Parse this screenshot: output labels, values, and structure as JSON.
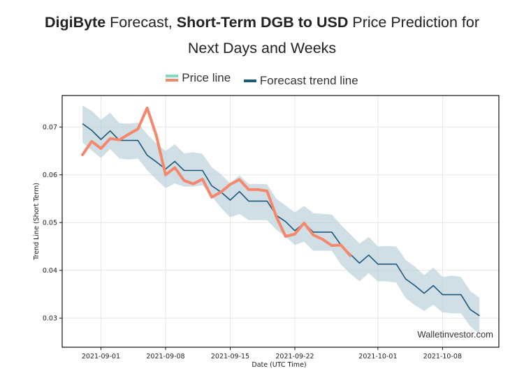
{
  "title": {
    "part1_bold": "DigiByte",
    "part2": " Forecast, ",
    "part3_bold": "Short-Term DGB to USD",
    "part4": " Price Prediction for",
    "line2": "Next Days and Weeks"
  },
  "legend": {
    "items": [
      {
        "label": "Price line",
        "colors": [
          "#7fdcc0",
          "#f4876c"
        ]
      },
      {
        "label": "Forecast trend line",
        "color": "#1d5878"
      }
    ]
  },
  "watermark": "Walletinvestor.com",
  "chart_data": {
    "type": "line",
    "title": "DigiByte Forecast, Short-Term DGB to USD Price Prediction for Next Days and Weeks",
    "xlabel": "Date (UTC Time)",
    "ylabel": "Trend Line (Short Term)",
    "x_ticks": [
      "2021-09-01",
      "2021-09-08",
      "2021-09-15",
      "2021-09-22",
      "2021-10-01",
      "2021-10-08"
    ],
    "y_ticks": [
      0.03,
      0.04,
      0.05,
      0.06,
      0.07
    ],
    "y_tick_labels": [
      "0.03",
      "0.04",
      "0.05",
      "0.06",
      "0.07"
    ],
    "xlim": [
      "2021-08-27.8",
      "2021-10-14.1"
    ],
    "ylim": [
      0.0239,
      0.0766
    ],
    "grid": true,
    "legend_position": "top-center",
    "colors": {
      "price": "#f4876c",
      "trend": "#1d5878",
      "band": "#b7cdd9"
    },
    "x_start": "2021-08-30",
    "series": [
      {
        "name": "Forecast trend line",
        "start": "2021-08-30",
        "values": [
          0.0707,
          0.0693,
          0.0674,
          0.0692,
          0.0672,
          0.0672,
          0.0672,
          0.0641,
          0.0627,
          0.0612,
          0.0628,
          0.0609,
          0.0609,
          0.0609,
          0.0577,
          0.0564,
          0.0547,
          0.0565,
          0.0545,
          0.0545,
          0.0545,
          0.0515,
          0.0502,
          0.0483,
          0.0499,
          0.048,
          0.048,
          0.048,
          0.0453,
          0.0434,
          0.0415,
          0.0432,
          0.0413,
          0.0413,
          0.0413,
          0.0382,
          0.0368,
          0.0352,
          0.0368,
          0.0349,
          0.0349,
          0.0349,
          0.0318,
          0.0305
        ]
      },
      {
        "name": "Price line",
        "start": "2021-08-30",
        "values": [
          0.0642,
          0.067,
          0.0655,
          0.0676,
          0.0673,
          0.0685,
          0.0696,
          0.074,
          0.0682,
          0.06,
          0.0615,
          0.0588,
          0.0581,
          0.0591,
          0.0553,
          0.0564,
          0.058,
          0.059,
          0.0569,
          0.0569,
          0.0566,
          0.0512,
          0.0471,
          0.0476,
          0.0499,
          0.0474,
          0.0465,
          0.0452,
          0.0453,
          0.0431
        ]
      }
    ],
    "band": {
      "name": "Forecast confidence band",
      "start": "2021-08-30",
      "upper": [
        0.0745,
        0.0734,
        0.0715,
        0.073,
        0.0708,
        0.0707,
        0.0709,
        0.0685,
        0.0666,
        0.065,
        0.0664,
        0.0645,
        0.0647,
        0.0644,
        0.0616,
        0.0601,
        0.0582,
        0.0599,
        0.0581,
        0.0581,
        0.058,
        0.055,
        0.0536,
        0.0521,
        0.0535,
        0.052,
        0.0518,
        0.0517,
        0.0495,
        0.0476,
        0.0456,
        0.047,
        0.045,
        0.0451,
        0.045,
        0.0422,
        0.0408,
        0.039,
        0.0406,
        0.0386,
        0.0389,
        0.0386,
        0.0357,
        0.0342
      ],
      "lower": [
        0.0667,
        0.0651,
        0.0635,
        0.0654,
        0.0634,
        0.0632,
        0.0634,
        0.061,
        0.059,
        0.0572,
        0.0582,
        0.0575,
        0.0575,
        0.0578,
        0.0555,
        0.0531,
        0.0511,
        0.0518,
        0.0505,
        0.0505,
        0.0505,
        0.0485,
        0.047,
        0.0453,
        0.046,
        0.0441,
        0.0441,
        0.0441,
        0.0412,
        0.0393,
        0.0377,
        0.0394,
        0.0377,
        0.0377,
        0.0374,
        0.0342,
        0.0327,
        0.0315,
        0.0328,
        0.0312,
        0.031,
        0.031,
        0.0283,
        0.0266
      ]
    }
  }
}
